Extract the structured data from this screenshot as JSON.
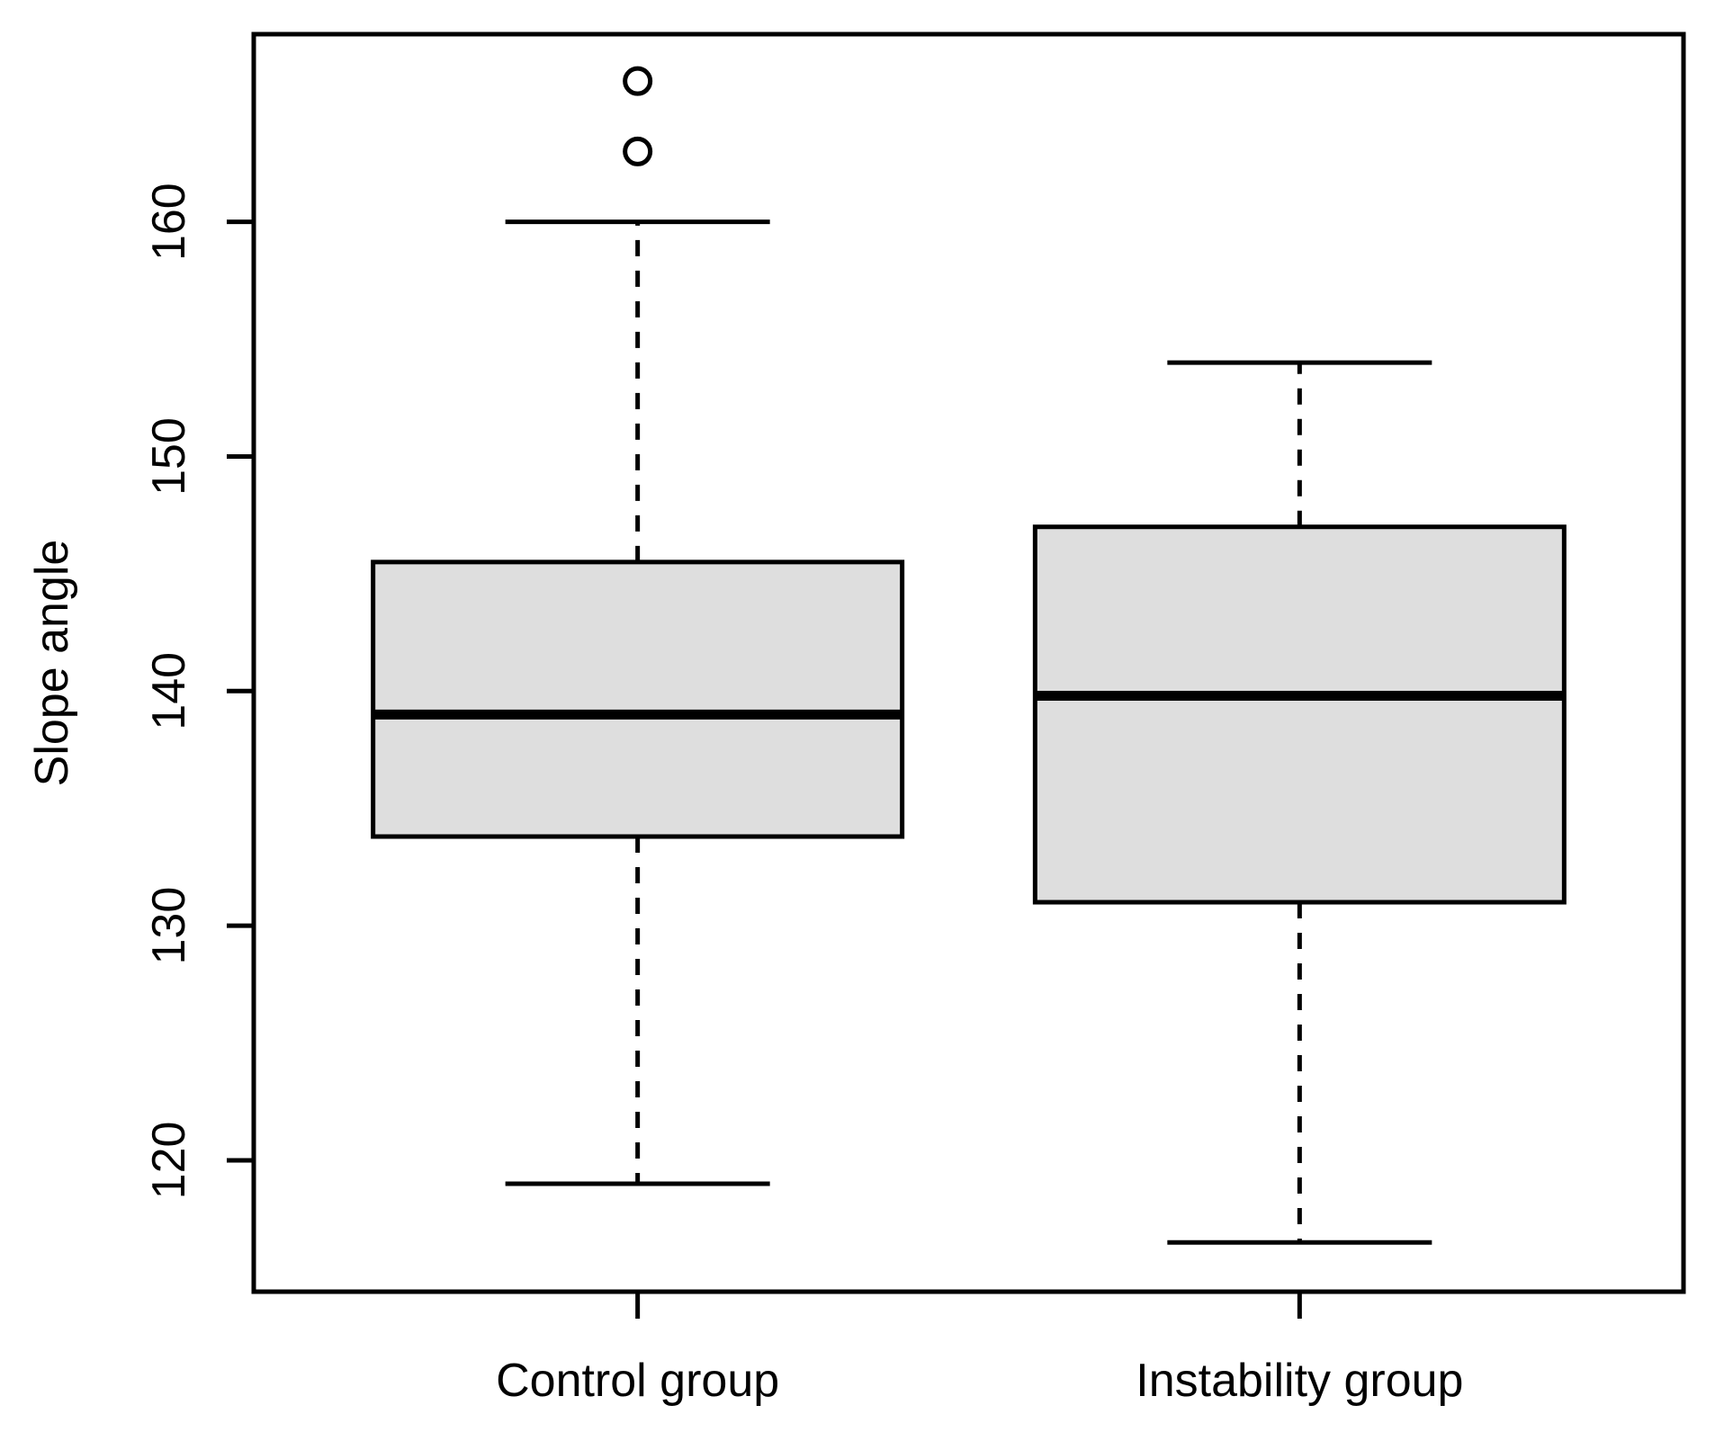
{
  "chart_data": {
    "type": "boxplot",
    "title": "",
    "xlabel": "",
    "ylabel": "Slope angle",
    "ylim": [
      114.4,
      168.0
    ],
    "yticks": [
      120,
      130,
      140,
      150,
      160
    ],
    "categories": [
      "Control group",
      "Instability group"
    ],
    "series": [
      {
        "name": "Control group",
        "whisker_low": 119,
        "q1": 133.8,
        "median": 139,
        "q3": 145.5,
        "whisker_high": 160,
        "outliers": [
          163,
          166
        ]
      },
      {
        "name": "Instability group",
        "whisker_low": 116.5,
        "q1": 131,
        "median": 139.8,
        "q3": 147,
        "whisker_high": 154,
        "outliers": []
      }
    ],
    "grid": false,
    "legend": null,
    "colors": {
      "box_fill": "#DEDEDE",
      "line": "#000000",
      "background": "#FFFFFF"
    }
  }
}
